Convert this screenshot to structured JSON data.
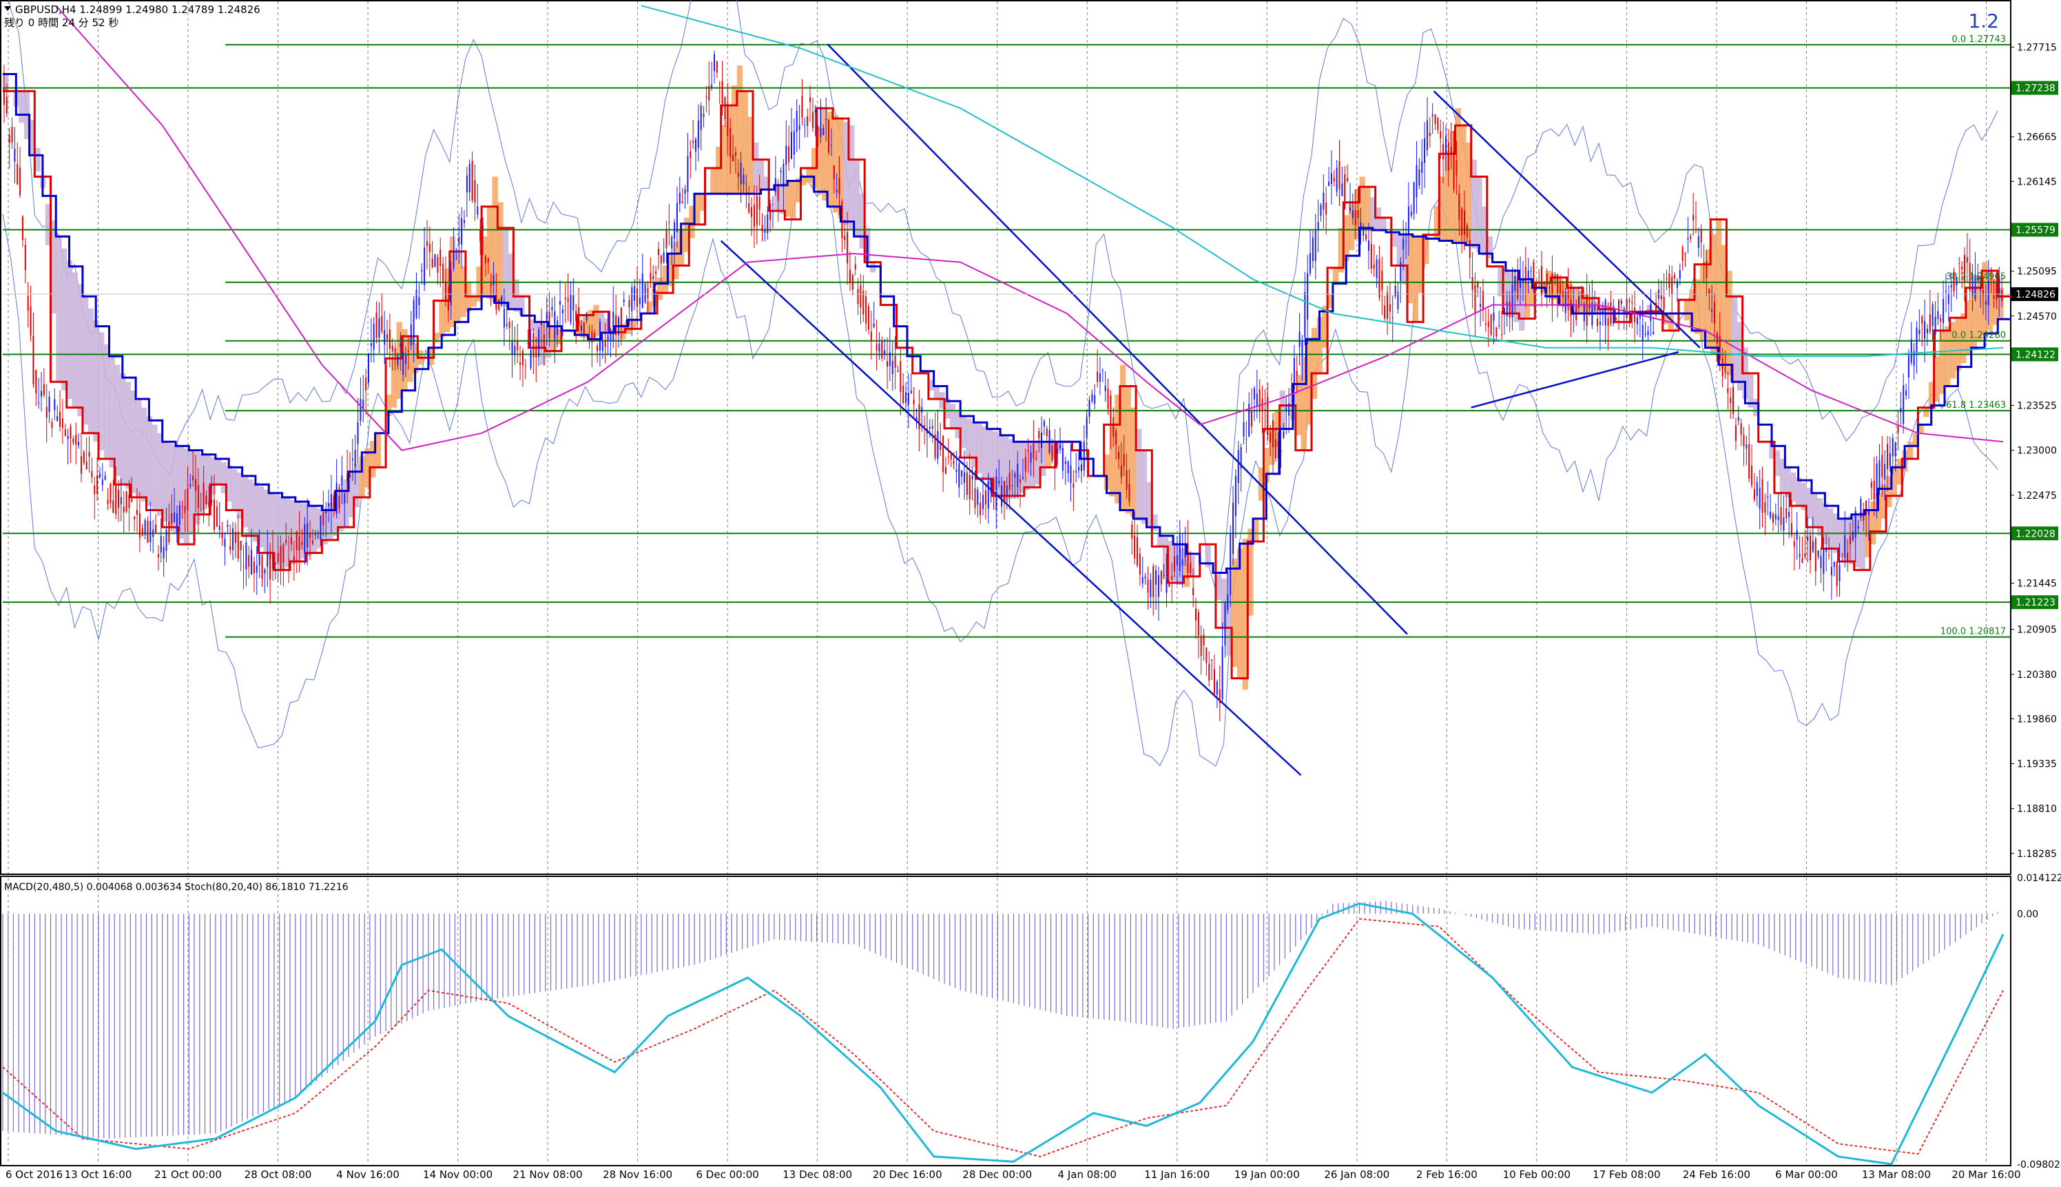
{
  "window": {
    "symbol_line": "GBPUSD,H4  1.24899 1.24980 1.24789 1.24826",
    "timer_line": "残り 0 時間 24 分 52 秒",
    "corner_label": "1.2"
  },
  "chart_data": [
    {
      "type": "line",
      "chart_kind": "candlestick",
      "price_axis": {
        "ticks": [
          "1.27715",
          "1.26665",
          "1.26145",
          "1.25095",
          "1.24570",
          "1.23525",
          "1.23000",
          "1.22475",
          "1.21445",
          "1.20905",
          "1.20380",
          "1.19860",
          "1.19335",
          "1.18810",
          "1.18285"
        ],
        "ylim": [
          1.1805,
          1.2825
        ],
        "current_price": "1.24826",
        "level_labels": [
          "1.27238",
          "1.25579",
          "1.24122",
          "1.22028",
          "1.21223"
        ],
        "fib_labels": [
          "0.0 1.27743",
          "38.2 1.24965",
          "0.0 1.24280",
          "61.8 1.23463",
          "100.0 1.20817"
        ],
        "horizontal_levels": [
          1.27743,
          1.27238,
          1.25579,
          1.24965,
          1.2428,
          1.24122,
          1.23463,
          1.22028,
          1.21223,
          1.20817
        ]
      },
      "time_axis": {
        "ticks": [
          "6 Oct 2016",
          "13 Oct 16:00",
          "21 Oct 00:00",
          "28 Oct 08:00",
          "4 Nov 16:00",
          "14 Nov 00:00",
          "21 Nov 08:00",
          "28 Nov 16:00",
          "6 Dec 00:00",
          "13 Dec 08:00",
          "20 Dec 16:00",
          "28 Dec 00:00",
          "4 Jan 08:00",
          "11 Jan 16:00",
          "19 Jan 00:00",
          "26 Jan 08:00",
          "2 Feb 16:00",
          "10 Feb 00:00",
          "17 Feb 08:00",
          "24 Feb 16:00",
          "6 Mar 00:00",
          "13 Mar 08:00",
          "20 Mar 16:00"
        ]
      },
      "price_path": [
        [
          0,
          1.272
        ],
        [
          6,
          1.262
        ],
        [
          12,
          1.238
        ],
        [
          24,
          1.232
        ],
        [
          36,
          1.226
        ],
        [
          48,
          1.223
        ],
        [
          60,
          1.219
        ],
        [
          72,
          1.226
        ],
        [
          84,
          1.22
        ],
        [
          96,
          1.216
        ],
        [
          108,
          1.218
        ],
        [
          120,
          1.221
        ],
        [
          132,
          1.228
        ],
        [
          140,
          1.245
        ],
        [
          152,
          1.24
        ],
        [
          160,
          1.255
        ],
        [
          168,
          1.248
        ],
        [
          176,
          1.262
        ],
        [
          184,
          1.25
        ],
        [
          194,
          1.24
        ],
        [
          204,
          1.244
        ],
        [
          214,
          1.247
        ],
        [
          224,
          1.243
        ],
        [
          234,
          1.246
        ],
        [
          244,
          1.25
        ],
        [
          254,
          1.258
        ],
        [
          262,
          1.268
        ],
        [
          268,
          1.275
        ],
        [
          274,
          1.266
        ],
        [
          282,
          1.258
        ],
        [
          288,
          1.257
        ],
        [
          294,
          1.263
        ],
        [
          300,
          1.27
        ],
        [
          310,
          1.268
        ],
        [
          318,
          1.252
        ],
        [
          330,
          1.242
        ],
        [
          342,
          1.236
        ],
        [
          356,
          1.228
        ],
        [
          368,
          1.224
        ],
        [
          380,
          1.226
        ],
        [
          392,
          1.232
        ],
        [
          404,
          1.226
        ],
        [
          412,
          1.24
        ],
        [
          420,
          1.23
        ],
        [
          428,
          1.215
        ],
        [
          436,
          1.214
        ],
        [
          444,
          1.219
        ],
        [
          452,
          1.206
        ],
        [
          458,
          1.202
        ],
        [
          464,
          1.228
        ],
        [
          472,
          1.237
        ],
        [
          480,
          1.23
        ],
        [
          488,
          1.242
        ],
        [
          494,
          1.256
        ],
        [
          502,
          1.262
        ],
        [
          512,
          1.256
        ],
        [
          522,
          1.245
        ],
        [
          532,
          1.262
        ],
        [
          538,
          1.27
        ],
        [
          546,
          1.262
        ],
        [
          554,
          1.248
        ],
        [
          562,
          1.244
        ],
        [
          572,
          1.251
        ],
        [
          582,
          1.249
        ],
        [
          592,
          1.247
        ],
        [
          600,
          1.245
        ],
        [
          610,
          1.247
        ],
        [
          618,
          1.244
        ],
        [
          628,
          1.25
        ],
        [
          636,
          1.257
        ],
        [
          644,
          1.245
        ],
        [
          652,
          1.233
        ],
        [
          660,
          1.225
        ],
        [
          668,
          1.223
        ],
        [
          676,
          1.219
        ],
        [
          684,
          1.217
        ],
        [
          690,
          1.216
        ],
        [
          698,
          1.222
        ],
        [
          704,
          1.226
        ],
        [
          712,
          1.232
        ],
        [
          720,
          1.244
        ],
        [
          728,
          1.246
        ],
        [
          736,
          1.252
        ],
        [
          744,
          1.248
        ],
        [
          752,
          1.249
        ]
      ],
      "sma_blue_path": [
        [
          0,
          1.274
        ],
        [
          20,
          1.255
        ],
        [
          40,
          1.241
        ],
        [
          60,
          1.231
        ],
        [
          80,
          1.229
        ],
        [
          100,
          1.225
        ],
        [
          120,
          1.223
        ],
        [
          140,
          1.232
        ],
        [
          160,
          1.242
        ],
        [
          180,
          1.248
        ],
        [
          200,
          1.245
        ],
        [
          220,
          1.243
        ],
        [
          240,
          1.246
        ],
        [
          260,
          1.26
        ],
        [
          280,
          1.26
        ],
        [
          300,
          1.262
        ],
        [
          320,
          1.255
        ],
        [
          340,
          1.241
        ],
        [
          360,
          1.234
        ],
        [
          380,
          1.231
        ],
        [
          400,
          1.231
        ],
        [
          420,
          1.223
        ],
        [
          440,
          1.219
        ],
        [
          458,
          1.215
        ],
        [
          470,
          1.222
        ],
        [
          490,
          1.243
        ],
        [
          510,
          1.256
        ],
        [
          530,
          1.255
        ],
        [
          550,
          1.254
        ],
        [
          570,
          1.25
        ],
        [
          590,
          1.246
        ],
        [
          610,
          1.246
        ],
        [
          630,
          1.246
        ],
        [
          650,
          1.238
        ],
        [
          670,
          1.228
        ],
        [
          690,
          1.222
        ],
        [
          700,
          1.223
        ],
        [
          720,
          1.233
        ],
        [
          740,
          1.242
        ],
        [
          752,
          1.246
        ]
      ],
      "line_ma_magenta_path": [
        [
          20,
          1.282
        ],
        [
          60,
          1.268
        ],
        [
          90,
          1.254
        ],
        [
          120,
          1.24
        ],
        [
          150,
          1.23
        ],
        [
          180,
          1.232
        ],
        [
          220,
          1.238
        ],
        [
          250,
          1.245
        ],
        [
          280,
          1.252
        ],
        [
          320,
          1.253
        ],
        [
          360,
          1.252
        ],
        [
          400,
          1.246
        ],
        [
          430,
          1.238
        ],
        [
          450,
          1.233
        ],
        [
          480,
          1.236
        ],
        [
          520,
          1.241
        ],
        [
          560,
          1.247
        ],
        [
          600,
          1.247
        ],
        [
          640,
          1.244
        ],
        [
          680,
          1.237
        ],
        [
          720,
          1.232
        ],
        [
          752,
          1.231
        ]
      ],
      "line_ma_cyan_path": [
        [
          240,
          1.282
        ],
        [
          300,
          1.277
        ],
        [
          360,
          1.27
        ],
        [
          400,
          1.263
        ],
        [
          440,
          1.256
        ],
        [
          470,
          1.25
        ],
        [
          500,
          1.246
        ],
        [
          540,
          1.244
        ],
        [
          580,
          1.242
        ],
        [
          620,
          1.242
        ],
        [
          660,
          1.241
        ],
        [
          700,
          1.241
        ],
        [
          752,
          1.242
        ]
      ],
      "trendlines": [
        {
          "from": [
            310,
            1.2775
          ],
          "to": [
            528,
            1.2085
          ]
        },
        {
          "from": [
            270,
            1.2545
          ],
          "to": [
            488,
            1.192
          ]
        },
        {
          "from": [
            538,
            1.272
          ],
          "to": [
            638,
            1.242
          ]
        },
        {
          "from": [
            552,
            1.235
          ],
          "to": [
            630,
            1.2415
          ]
        }
      ]
    },
    {
      "type": "area",
      "title": "MACD(20,480,5) 0.004068 0.003634  Stoch(80,20,40) 86.1810 71.2216",
      "ticks": [
        "0.014122",
        "0.00",
        "-0.098024"
      ],
      "ylim": [
        -0.098024,
        0.014122
      ],
      "macd_hist_path": [
        [
          0,
          -0.085
        ],
        [
          40,
          -0.088
        ],
        [
          80,
          -0.086
        ],
        [
          110,
          -0.072
        ],
        [
          140,
          -0.048
        ],
        [
          160,
          -0.038
        ],
        [
          180,
          -0.034
        ],
        [
          220,
          -0.028
        ],
        [
          260,
          -0.02
        ],
        [
          290,
          -0.01
        ],
        [
          320,
          -0.012
        ],
        [
          360,
          -0.03
        ],
        [
          400,
          -0.04
        ],
        [
          420,
          -0.042
        ],
        [
          440,
          -0.045
        ],
        [
          460,
          -0.042
        ],
        [
          480,
          -0.02
        ],
        [
          500,
          0.004
        ],
        [
          520,
          0.005
        ],
        [
          540,
          0.002
        ],
        [
          570,
          -0.006
        ],
        [
          600,
          -0.008
        ],
        [
          620,
          -0.005
        ],
        [
          660,
          -0.012
        ],
        [
          690,
          -0.025
        ],
        [
          710,
          -0.028
        ],
        [
          730,
          -0.014
        ],
        [
          752,
          0.002
        ]
      ],
      "stoch_main_path": [
        [
          0,
          -0.07
        ],
        [
          20,
          -0.085
        ],
        [
          50,
          -0.092
        ],
        [
          80,
          -0.088
        ],
        [
          110,
          -0.072
        ],
        [
          140,
          -0.042
        ],
        [
          150,
          -0.02
        ],
        [
          165,
          -0.014
        ],
        [
          190,
          -0.04
        ],
        [
          230,
          -0.062
        ],
        [
          250,
          -0.04
        ],
        [
          280,
          -0.025
        ],
        [
          300,
          -0.04
        ],
        [
          330,
          -0.068
        ],
        [
          350,
          -0.095
        ],
        [
          380,
          -0.097
        ],
        [
          410,
          -0.078
        ],
        [
          430,
          -0.083
        ],
        [
          450,
          -0.074
        ],
        [
          470,
          -0.05
        ],
        [
          495,
          -0.002
        ],
        [
          510,
          0.004
        ],
        [
          530,
          0.0
        ],
        [
          560,
          -0.025
        ],
        [
          590,
          -0.06
        ],
        [
          620,
          -0.07
        ],
        [
          640,
          -0.055
        ],
        [
          660,
          -0.075
        ],
        [
          690,
          -0.095
        ],
        [
          710,
          -0.098
        ],
        [
          735,
          -0.045
        ],
        [
          752,
          -0.008
        ]
      ],
      "stoch_signal_path": [
        [
          0,
          -0.06
        ],
        [
          30,
          -0.088
        ],
        [
          70,
          -0.092
        ],
        [
          110,
          -0.078
        ],
        [
          140,
          -0.052
        ],
        [
          160,
          -0.03
        ],
        [
          190,
          -0.035
        ],
        [
          230,
          -0.058
        ],
        [
          260,
          -0.045
        ],
        [
          290,
          -0.03
        ],
        [
          320,
          -0.055
        ],
        [
          350,
          -0.085
        ],
        [
          390,
          -0.095
        ],
        [
          430,
          -0.08
        ],
        [
          460,
          -0.075
        ],
        [
          490,
          -0.03
        ],
        [
          510,
          -0.002
        ],
        [
          540,
          -0.005
        ],
        [
          570,
          -0.035
        ],
        [
          600,
          -0.062
        ],
        [
          630,
          -0.065
        ],
        [
          660,
          -0.07
        ],
        [
          690,
          -0.09
        ],
        [
          720,
          -0.094
        ],
        [
          752,
          -0.03
        ]
      ]
    }
  ]
}
